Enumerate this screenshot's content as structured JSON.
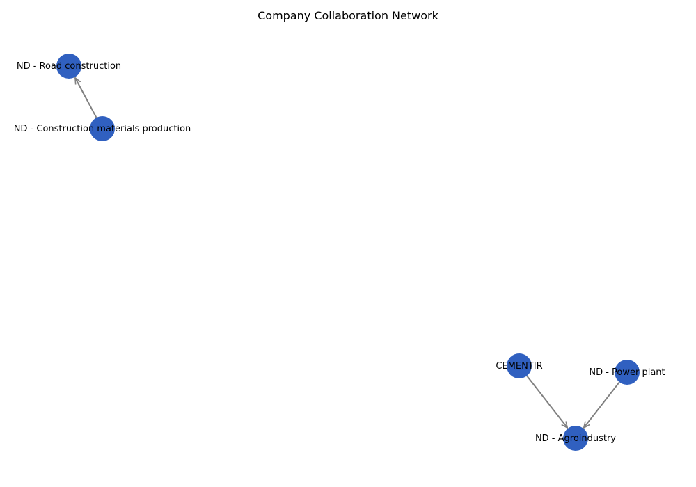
{
  "title": "Company Collaboration Network",
  "colors": {
    "node": "#3060c0",
    "edge": "#808080",
    "background": "#ffffff"
  },
  "nodes": [
    {
      "id": "road",
      "label": "ND - Road construction"
    },
    {
      "id": "cmp",
      "label": "ND - Construction materials production"
    },
    {
      "id": "cementir",
      "label": "CEMENTIR"
    },
    {
      "id": "power",
      "label": "ND - Power plant"
    },
    {
      "id": "agro",
      "label": "ND - Agroindustry"
    }
  ],
  "edges": [
    {
      "from": "cmp",
      "to": "road",
      "directed": true
    },
    {
      "from": "cementir",
      "to": "agro",
      "directed": true
    },
    {
      "from": "power",
      "to": "agro",
      "directed": true
    }
  ]
}
